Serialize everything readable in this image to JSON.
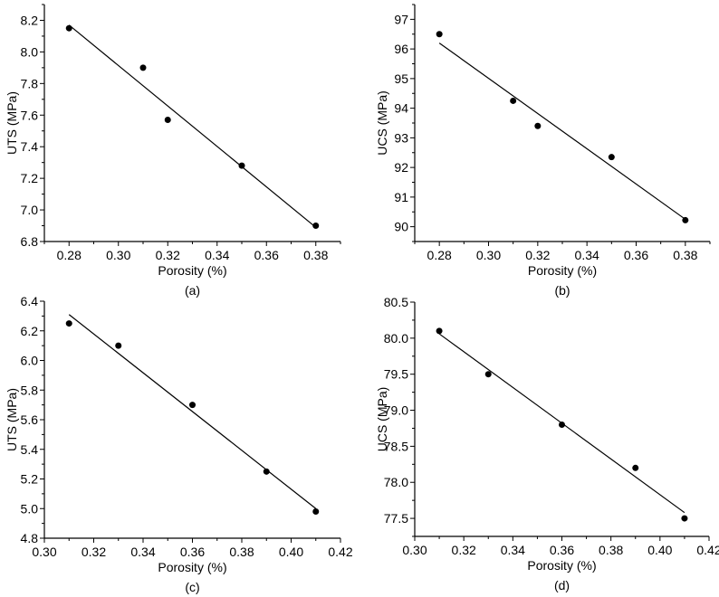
{
  "chart_data": [
    {
      "type": "scatter",
      "panel_label": "(a)",
      "xlabel": "Porosity (%)",
      "ylabel": "UTS (MPa)",
      "xlim": [
        0.27,
        0.39
      ],
      "ylim": [
        6.8,
        8.3
      ],
      "xticks": [
        0.28,
        0.3,
        0.32,
        0.34,
        0.36,
        0.38
      ],
      "xtick_labels": [
        "0.28",
        "0.30",
        "0.32",
        "0.34",
        "0.36",
        "0.38"
      ],
      "yticks": [
        6.8,
        7.0,
        7.2,
        7.4,
        7.6,
        7.8,
        8.0,
        8.2
      ],
      "ytick_labels": [
        "6.8",
        "7.0",
        "7.2",
        "7.4",
        "7.6",
        "7.8",
        "8.0",
        "8.2"
      ],
      "x": [
        0.28,
        0.31,
        0.32,
        0.35,
        0.38
      ],
      "y": [
        8.15,
        7.9,
        7.57,
        7.28,
        6.9
      ],
      "fit_line": {
        "x": [
          0.28,
          0.38
        ],
        "y": [
          8.17,
          6.89
        ]
      },
      "grid": false
    },
    {
      "type": "scatter",
      "panel_label": "(b)",
      "xlabel": "Porosity (%)",
      "ylabel": "UCS (MPa)",
      "xlim": [
        0.27,
        0.39
      ],
      "ylim": [
        89.5,
        97.5
      ],
      "xticks": [
        0.28,
        0.3,
        0.32,
        0.34,
        0.36,
        0.38
      ],
      "xtick_labels": [
        "0.28",
        "0.30",
        "0.32",
        "0.34",
        "0.36",
        "0.38"
      ],
      "yticks": [
        90,
        91,
        92,
        93,
        94,
        95,
        96,
        97
      ],
      "ytick_labels": [
        "90",
        "91",
        "92",
        "93",
        "94",
        "95",
        "96",
        "97"
      ],
      "x": [
        0.28,
        0.31,
        0.32,
        0.35,
        0.38
      ],
      "y": [
        96.5,
        94.25,
        93.4,
        92.35,
        90.22
      ],
      "fit_line": {
        "x": [
          0.28,
          0.38
        ],
        "y": [
          96.2,
          90.25
        ]
      },
      "grid": false
    },
    {
      "type": "scatter",
      "panel_label": "(c)",
      "xlabel": "Porosity (%)",
      "ylabel": "UTS (MPa)",
      "xlim": [
        0.3,
        0.42
      ],
      "ylim": [
        4.8,
        6.4
      ],
      "xticks": [
        0.3,
        0.32,
        0.34,
        0.36,
        0.38,
        0.4,
        0.42
      ],
      "xtick_labels": [
        "0.30",
        "0.32",
        "0.34",
        "0.36",
        "0.38",
        "0.40",
        "0.42"
      ],
      "yticks": [
        4.8,
        5.0,
        5.2,
        5.4,
        5.6,
        5.8,
        6.0,
        6.2,
        6.4
      ],
      "ytick_labels": [
        "4.8",
        "5.0",
        "5.2",
        "5.4",
        "5.6",
        "5.8",
        "6.0",
        "6.2",
        "6.4"
      ],
      "x": [
        0.31,
        0.33,
        0.36,
        0.39,
        0.41
      ],
      "y": [
        6.25,
        6.1,
        5.7,
        5.25,
        4.98
      ],
      "fit_line": {
        "x": [
          0.31,
          0.41
        ],
        "y": [
          6.31,
          5.0
        ]
      },
      "grid": false
    },
    {
      "type": "scatter",
      "panel_label": "(d)",
      "xlabel": "Porosity (%)",
      "ylabel": "UCS (MPa)",
      "xlim": [
        0.3,
        0.42
      ],
      "ylim": [
        77.25,
        80.5
      ],
      "xticks": [
        0.3,
        0.32,
        0.34,
        0.36,
        0.38,
        0.4,
        0.42
      ],
      "xtick_labels": [
        "0.30",
        "0.32",
        "0.34",
        "0.36",
        "0.38",
        "0.40",
        "0.42"
      ],
      "yticks": [
        77.5,
        78.0,
        78.5,
        79.0,
        79.5,
        80.0,
        80.5
      ],
      "ytick_labels": [
        "77.5",
        "78.0",
        "78.5",
        "79.0",
        "79.5",
        "80.0",
        "80.5"
      ],
      "x": [
        0.31,
        0.33,
        0.36,
        0.39,
        0.41
      ],
      "y": [
        80.1,
        79.5,
        78.8,
        78.2,
        77.5
      ],
      "fit_line": {
        "x": [
          0.31,
          0.41
        ],
        "y": [
          80.06,
          77.58
        ]
      },
      "grid": false
    }
  ]
}
